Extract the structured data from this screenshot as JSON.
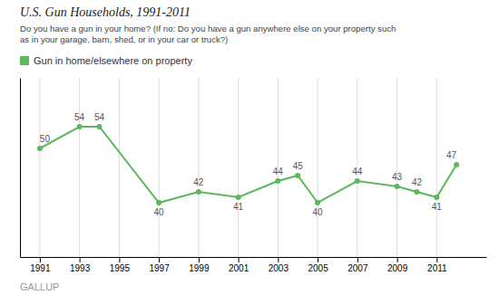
{
  "chart_data": {
    "type": "line",
    "title": "U.S. Gun Households, 1991-2011",
    "subtitle": [
      "Do you have a gun in your home? (If no: Do you have a gun anywhere else on your property such",
      "as in your garage, barn, shed, or in your car or truck?)"
    ],
    "annotations": [
      "GALLUP"
    ],
    "x": [
      1991,
      1993,
      1994,
      1997,
      1999,
      2001,
      2003,
      2004,
      2005,
      2007,
      2009,
      2010,
      2011,
      2012
    ],
    "series": [
      {
        "name": "Gun in home/elsewhere on property",
        "color": "#5cb85c",
        "marker": "circle",
        "values": [
          50,
          54,
          54,
          40,
          42,
          41,
          44,
          45,
          40,
          44,
          43,
          42,
          41,
          47
        ]
      }
    ],
    "xlim": [
      1990.0,
      2013.5
    ],
    "xticks": [
      1991,
      1993,
      1995,
      1997,
      1999,
      2001,
      2003,
      2005,
      2007,
      2009,
      2011
    ],
    "ylim": [
      30,
      63
    ],
    "grid": true,
    "data_labels": true,
    "tick_labels": "x",
    "legend": "top-left"
  }
}
